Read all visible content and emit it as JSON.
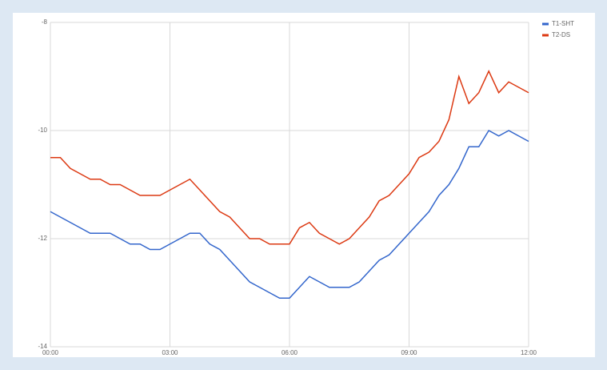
{
  "chart_data": {
    "type": "line",
    "x": [
      0,
      0.25,
      0.5,
      0.75,
      1,
      1.25,
      1.5,
      1.75,
      2,
      2.25,
      2.5,
      2.75,
      3,
      3.25,
      3.5,
      3.75,
      4,
      4.25,
      4.5,
      4.75,
      5,
      5.25,
      5.5,
      5.75,
      6,
      6.25,
      6.5,
      6.75,
      7,
      7.25,
      7.5,
      7.75,
      8,
      8.25,
      8.5,
      8.75,
      9,
      9.25,
      9.5,
      9.75,
      10,
      10.25,
      10.5,
      10.75,
      11,
      11.25,
      11.5,
      11.75,
      12
    ],
    "series": [
      {
        "name": "T1-SHT",
        "color": "#3366cc",
        "values": [
          -11.5,
          -11.6,
          -11.7,
          -11.8,
          -11.9,
          -11.9,
          -11.9,
          -12.0,
          -12.1,
          -12.1,
          -12.2,
          -12.2,
          -12.1,
          -12.0,
          -11.9,
          -11.9,
          -12.1,
          -12.2,
          -12.4,
          -12.6,
          -12.8,
          -12.9,
          -13.0,
          -13.1,
          -13.1,
          -12.9,
          -12.7,
          -12.8,
          -12.9,
          -12.9,
          -12.9,
          -12.8,
          -12.6,
          -12.4,
          -12.3,
          -12.1,
          -11.9,
          -11.7,
          -11.5,
          -11.2,
          -11.0,
          -10.7,
          -10.3,
          -10.3,
          -10.0,
          -10.1,
          -10.0,
          -10.1,
          -10.2
        ]
      },
      {
        "name": "T2-DS",
        "color": "#dc3912",
        "values": [
          -10.5,
          -10.5,
          -10.7,
          -10.8,
          -10.9,
          -10.9,
          -11.0,
          -11.0,
          -11.1,
          -11.2,
          -11.2,
          -11.2,
          -11.1,
          -11.0,
          -10.9,
          -11.1,
          -11.3,
          -11.5,
          -11.6,
          -11.8,
          -12.0,
          -12.0,
          -12.1,
          -12.1,
          -12.1,
          -11.8,
          -11.7,
          -11.9,
          -12.0,
          -12.1,
          -12.0,
          -11.8,
          -11.6,
          -11.3,
          -11.2,
          -11.0,
          -10.8,
          -10.5,
          -10.4,
          -10.2,
          -9.8,
          -9.0,
          -9.5,
          -9.3,
          -8.9,
          -9.3,
          -9.1,
          -9.2,
          -9.3
        ]
      }
    ],
    "xlim": [
      0,
      12
    ],
    "xticks": [
      {
        "value": 0,
        "label": "00:00"
      },
      {
        "value": 3,
        "label": "03:00"
      },
      {
        "value": 6,
        "label": "06:00"
      },
      {
        "value": 9,
        "label": "09:00"
      },
      {
        "value": 12,
        "label": "12:00"
      }
    ],
    "ylim": [
      -14,
      -8
    ],
    "yticks": [
      -14,
      -12,
      -10,
      -8
    ],
    "grid": true,
    "legend": "top-right"
  }
}
